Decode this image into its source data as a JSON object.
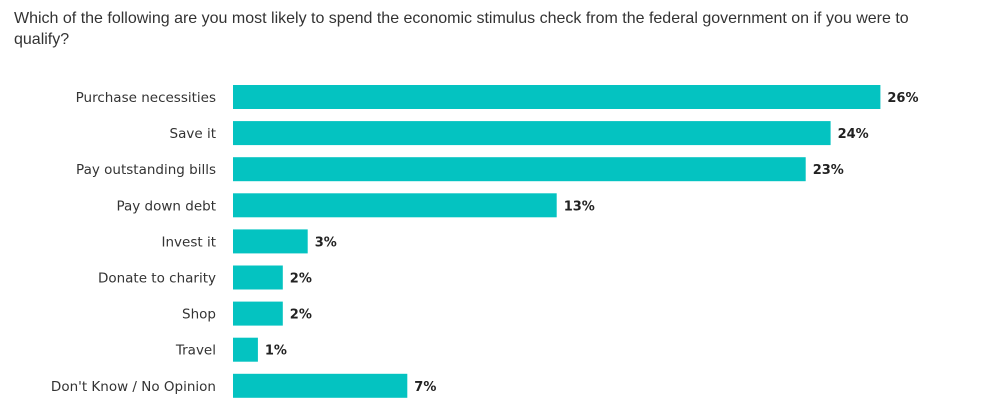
{
  "question": "Which of the following are you most likely to spend the economic stimulus check from the federal government on if you were to qualify?",
  "colors": {
    "bar": "#04c3c1",
    "text": "#333333"
  },
  "chart_data": {
    "type": "bar",
    "orientation": "horizontal",
    "title": "Which of the following are you most likely to spend the economic stimulus check from the federal government on if you were to qualify?",
    "categories": [
      "Purchase necessities",
      "Save it",
      "Pay outstanding bills",
      "Pay down debt",
      "Invest it",
      "Donate to charity",
      "Shop",
      "Travel",
      "Don't Know / No Opinion"
    ],
    "values": [
      26,
      24,
      23,
      13,
      3,
      2,
      2,
      1,
      7
    ],
    "value_labels": [
      "26%",
      "24%",
      "23%",
      "13%",
      "3%",
      "2%",
      "2%",
      "1%",
      "7%"
    ],
    "unit": "%",
    "xlabel": "",
    "ylabel": "",
    "grid": false,
    "legend": "none"
  }
}
